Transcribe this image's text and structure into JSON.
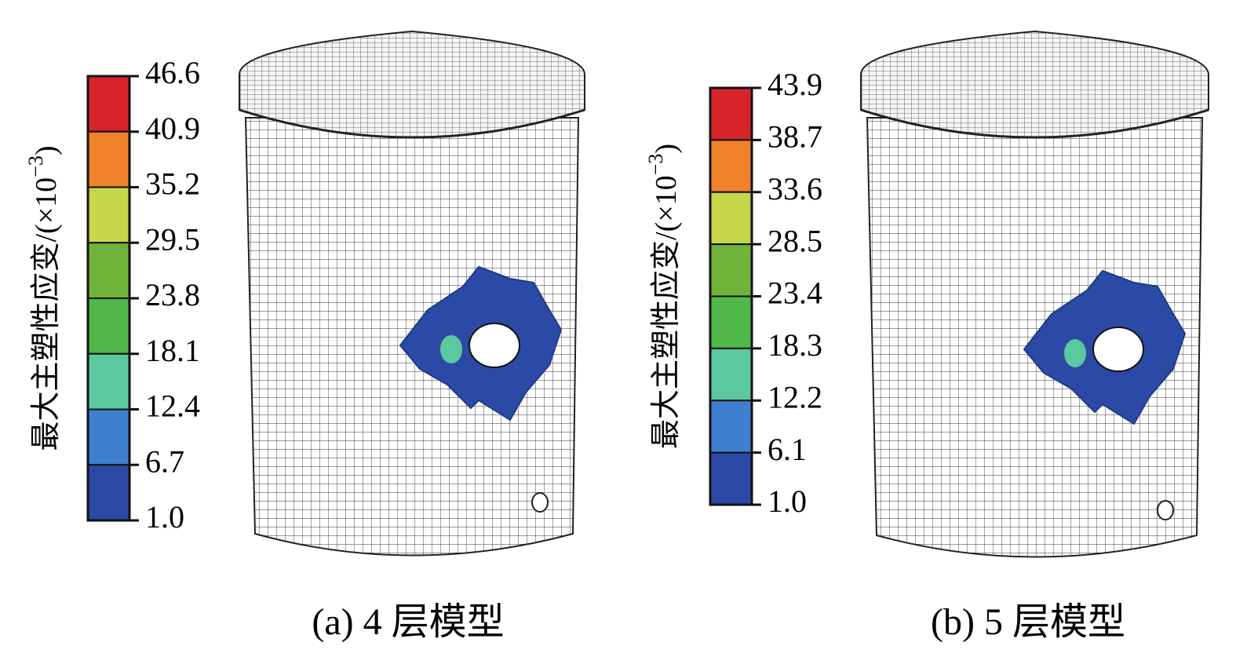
{
  "panels": [
    {
      "legend_title": "最大主塑性应变/(×10",
      "legend_title_sup": "−3",
      "legend_title_end": ")",
      "legend_ticks": [
        "46.6",
        "40.9",
        "35.2",
        "29.5",
        "23.8",
        "18.1",
        "12.4",
        "6.7",
        "1.0"
      ],
      "colors": [
        "#d7242b",
        "#f0832a",
        "#c5d648",
        "#6fb33a",
        "#4fb848",
        "#5cc8a0",
        "#3f7fcf",
        "#2b4aa5"
      ],
      "caption": "(a) 4 层模型"
    },
    {
      "legend_title": "最大主塑性应变/(×10",
      "legend_title_sup": "−3",
      "legend_title_end": ")",
      "legend_ticks": [
        "43.9",
        "38.7",
        "33.6",
        "28.5",
        "23.4",
        "18.3",
        "12.2",
        "6.1",
        "1.0"
      ],
      "colors": [
        "#d7242b",
        "#f0832a",
        "#c5d648",
        "#6fb33a",
        "#4fb848",
        "#5cc8a0",
        "#3f7fcf",
        "#2b4aa5"
      ],
      "caption": "(b) 5 层模型"
    }
  ]
}
